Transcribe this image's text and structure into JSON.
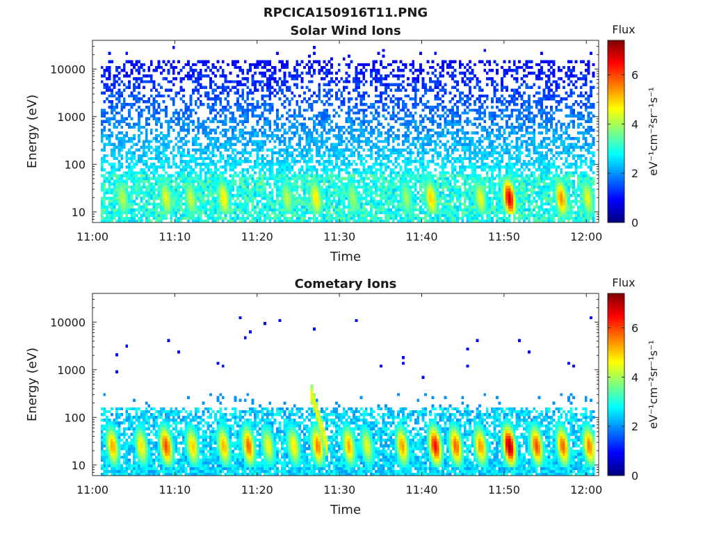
{
  "figure_title": "RPCICA150916T11.PNG",
  "colors": {
    "colormap": [
      "#00007f",
      "#0000ff",
      "#007fff",
      "#00ffff",
      "#7fff7f",
      "#ffff00",
      "#ff7f00",
      "#ff0000",
      "#7f0000"
    ]
  },
  "chart_data": [
    {
      "type": "heatmap",
      "title": "Solar Wind Ions",
      "xlabel": "Time",
      "ylabel": "Energy (eV)",
      "x_ticks": [
        "11:00",
        "11:10",
        "11:20",
        "11:30",
        "11:40",
        "11:50",
        "12:00"
      ],
      "xlim_minutes": [
        0,
        61.5
      ],
      "y_scale": "log",
      "y_ticks": [
        10,
        100,
        1000,
        10000
      ],
      "ylim": [
        6,
        40000
      ],
      "colorbar": {
        "label_top": "Flux",
        "label": "eV⁻¹cm⁻²sr⁻¹s⁻¹",
        "range": [
          0,
          7.4
        ],
        "ticks": [
          0,
          2,
          4,
          6
        ]
      },
      "description_of_data": "Sparse low-flux (~1-2) counts spread from ~40 eV to ~20000 eV; flux ~2.5-3.5 at 6-60 eV; enhanced bursts (~5-7) near 10-50 eV at the times listed",
      "bursts": [
        {
          "t": 3.5,
          "peak": 4.2
        },
        {
          "t": 8.8,
          "peak": 4.5
        },
        {
          "t": 11.8,
          "peak": 4.3
        },
        {
          "t": 15.8,
          "peak": 4.8
        },
        {
          "t": 23.5,
          "peak": 4.2
        },
        {
          "t": 27.0,
          "peak": 4.8
        },
        {
          "t": 31.5,
          "peak": 4.0
        },
        {
          "t": 38.0,
          "peak": 4.0
        },
        {
          "t": 41.0,
          "peak": 5.0
        },
        {
          "t": 47.0,
          "peak": 4.5
        },
        {
          "t": 50.5,
          "peak": 6.8
        },
        {
          "t": 56.8,
          "peak": 5.5
        },
        {
          "t": 60.0,
          "peak": 4.5
        }
      ]
    },
    {
      "type": "heatmap",
      "title": "Cometary Ions",
      "xlabel": "Time",
      "ylabel": "Energy (eV)",
      "x_ticks": [
        "11:00",
        "11:10",
        "11:20",
        "11:30",
        "11:40",
        "11:50",
        "12:00"
      ],
      "xlim_minutes": [
        0,
        61.5
      ],
      "y_scale": "log",
      "y_ticks": [
        10,
        100,
        1000,
        10000
      ],
      "ylim": [
        6,
        40000
      ],
      "colorbar": {
        "label_top": "Flux",
        "label": "eV⁻¹cm⁻²sr⁻¹s⁻¹",
        "range": [
          0,
          7.4
        ],
        "ticks": [
          0,
          2,
          4,
          6
        ]
      },
      "description_of_data": "Flux ~2-3 at 6-150 eV with repeating intense bursts (~5-7) at 10-80 eV; isolated weak counts above 1000 eV; a dispersive feature reaching ~300 eV near 11:27",
      "bursts": [
        {
          "t": 2.3,
          "peak": 5.3
        },
        {
          "t": 5.8,
          "peak": 4.8
        },
        {
          "t": 8.8,
          "peak": 6.0
        },
        {
          "t": 12.0,
          "peak": 5.0
        },
        {
          "t": 15.8,
          "peak": 5.2
        },
        {
          "t": 18.8,
          "peak": 5.8
        },
        {
          "t": 21.2,
          "peak": 4.6
        },
        {
          "t": 24.3,
          "peak": 4.8
        },
        {
          "t": 27.2,
          "peak": 5.6
        },
        {
          "t": 31.0,
          "peak": 5.3
        },
        {
          "t": 33.2,
          "peak": 4.5
        },
        {
          "t": 37.5,
          "peak": 5.4
        },
        {
          "t": 41.5,
          "peak": 6.5
        },
        {
          "t": 44.0,
          "peak": 5.8
        },
        {
          "t": 47.0,
          "peak": 5.4
        },
        {
          "t": 50.5,
          "peak": 7.2
        },
        {
          "t": 53.8,
          "peak": 6.0
        },
        {
          "t": 57.0,
          "peak": 5.8
        },
        {
          "t": 60.2,
          "peak": 5.6
        }
      ],
      "dispersive_feature": {
        "t_start": 26.5,
        "t_end": 28.5,
        "energy_start": 300,
        "energy_end": 20
      }
    }
  ]
}
